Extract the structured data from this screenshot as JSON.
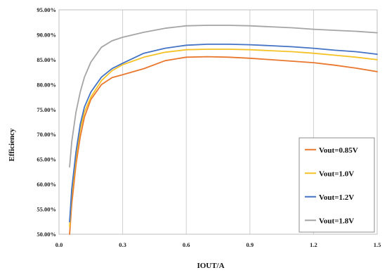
{
  "chart_data": {
    "type": "line",
    "xlabel": "IOUT/A",
    "ylabel": "Efficiency",
    "xlim": [
      0,
      1.5
    ],
    "ylim": [
      50,
      95
    ],
    "x_ticks": [
      "0.0",
      "0.3",
      "0.6",
      "0.9",
      "1.2",
      "1.5"
    ],
    "y_ticks": [
      "50.00%",
      "55.00%",
      "60.00%",
      "65.00%",
      "70.00%",
      "75.00%",
      "80.00%",
      "85.00%",
      "90.00%",
      "95.00%"
    ],
    "grid": "vertical",
    "legend_position": "bottom-right",
    "series": [
      {
        "name": "Vout=0.85V",
        "color": "#E9772E",
        "x": [
          0.05,
          0.06,
          0.08,
          0.1,
          0.12,
          0.15,
          0.2,
          0.25,
          0.3,
          0.4,
          0.5,
          0.6,
          0.7,
          0.8,
          0.9,
          1.0,
          1.1,
          1.2,
          1.3,
          1.4,
          1.5
        ],
        "y": [
          49.8,
          56.0,
          64.0,
          69.5,
          73.5,
          77.0,
          80.0,
          81.4,
          82.0,
          83.2,
          84.8,
          85.5,
          85.6,
          85.5,
          85.3,
          85.0,
          84.7,
          84.4,
          83.9,
          83.3,
          82.6
        ]
      },
      {
        "name": "Vout=1.0V",
        "color": "#F5C226",
        "x": [
          0.05,
          0.06,
          0.08,
          0.1,
          0.12,
          0.15,
          0.2,
          0.25,
          0.3,
          0.4,
          0.5,
          0.6,
          0.7,
          0.8,
          0.9,
          1.0,
          1.1,
          1.2,
          1.3,
          1.4,
          1.5
        ],
        "y": [
          51.5,
          58.0,
          65.5,
          71.0,
          74.5,
          77.5,
          80.8,
          82.8,
          84.0,
          85.5,
          86.5,
          87.0,
          87.1,
          87.1,
          87.0,
          86.8,
          86.6,
          86.3,
          85.9,
          85.5,
          85.0
        ]
      },
      {
        "name": "Vout=1.2V",
        "color": "#4472C4",
        "x": [
          0.05,
          0.06,
          0.08,
          0.1,
          0.12,
          0.15,
          0.2,
          0.25,
          0.3,
          0.4,
          0.5,
          0.6,
          0.7,
          0.8,
          0.9,
          1.0,
          1.1,
          1.2,
          1.3,
          1.4,
          1.5
        ],
        "y": [
          52.5,
          59.0,
          66.5,
          72.0,
          75.5,
          78.5,
          81.5,
          83.2,
          84.3,
          86.3,
          87.3,
          87.9,
          88.1,
          88.1,
          88.0,
          87.8,
          87.6,
          87.3,
          86.9,
          86.6,
          86.1
        ]
      },
      {
        "name": "Vout=1.8V",
        "color": "#A5A5A5",
        "x": [
          0.05,
          0.06,
          0.08,
          0.1,
          0.12,
          0.15,
          0.2,
          0.25,
          0.3,
          0.4,
          0.5,
          0.6,
          0.7,
          0.8,
          0.9,
          1.0,
          1.1,
          1.2,
          1.3,
          1.4,
          1.5
        ],
        "y": [
          63.5,
          68.5,
          74.5,
          78.5,
          81.5,
          84.5,
          87.5,
          88.8,
          89.5,
          90.5,
          91.3,
          91.8,
          91.9,
          91.9,
          91.8,
          91.6,
          91.4,
          91.1,
          90.9,
          90.7,
          90.4
        ]
      }
    ]
  }
}
